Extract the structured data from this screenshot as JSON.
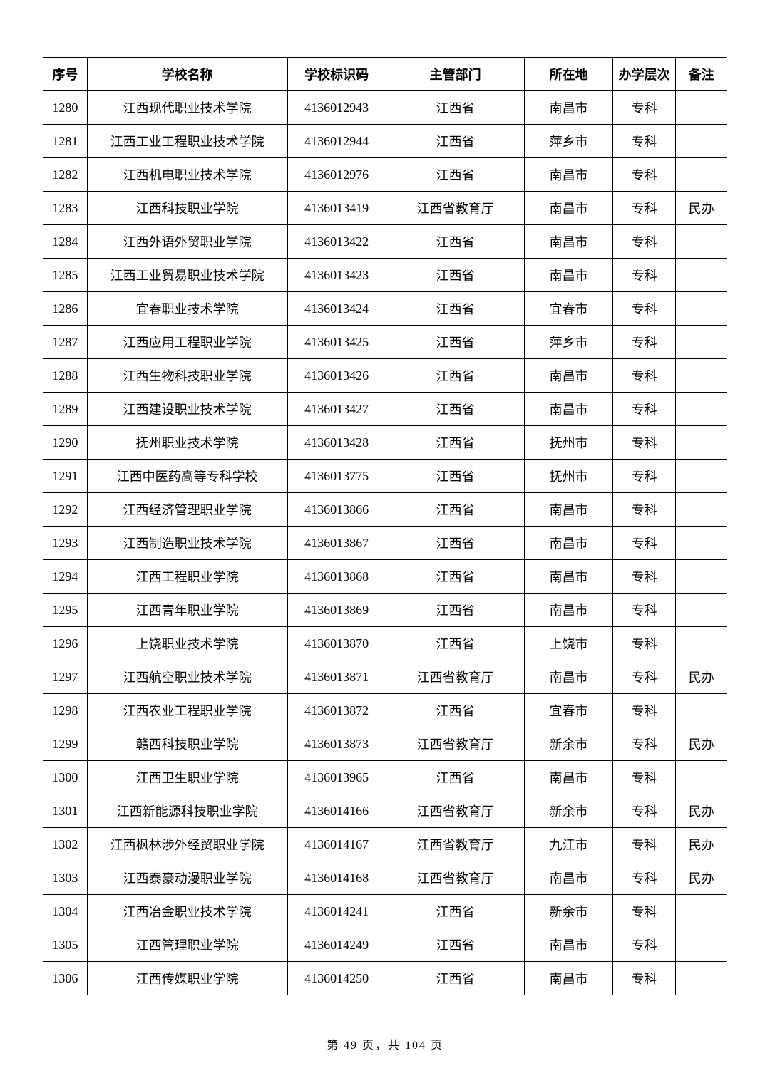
{
  "table": {
    "columns": [
      "序号",
      "学校名称",
      "学校标识码",
      "主管部门",
      "所在地",
      "办学层次",
      "备注"
    ],
    "rows": [
      [
        "1280",
        "江西现代职业技术学院",
        "4136012943",
        "江西省",
        "南昌市",
        "专科",
        ""
      ],
      [
        "1281",
        "江西工业工程职业技术学院",
        "4136012944",
        "江西省",
        "萍乡市",
        "专科",
        ""
      ],
      [
        "1282",
        "江西机电职业技术学院",
        "4136012976",
        "江西省",
        "南昌市",
        "专科",
        ""
      ],
      [
        "1283",
        "江西科技职业学院",
        "4136013419",
        "江西省教育厅",
        "南昌市",
        "专科",
        "民办"
      ],
      [
        "1284",
        "江西外语外贸职业学院",
        "4136013422",
        "江西省",
        "南昌市",
        "专科",
        ""
      ],
      [
        "1285",
        "江西工业贸易职业技术学院",
        "4136013423",
        "江西省",
        "南昌市",
        "专科",
        ""
      ],
      [
        "1286",
        "宜春职业技术学院",
        "4136013424",
        "江西省",
        "宜春市",
        "专科",
        ""
      ],
      [
        "1287",
        "江西应用工程职业学院",
        "4136013425",
        "江西省",
        "萍乡市",
        "专科",
        ""
      ],
      [
        "1288",
        "江西生物科技职业学院",
        "4136013426",
        "江西省",
        "南昌市",
        "专科",
        ""
      ],
      [
        "1289",
        "江西建设职业技术学院",
        "4136013427",
        "江西省",
        "南昌市",
        "专科",
        ""
      ],
      [
        "1290",
        "抚州职业技术学院",
        "4136013428",
        "江西省",
        "抚州市",
        "专科",
        ""
      ],
      [
        "1291",
        "江西中医药高等专科学校",
        "4136013775",
        "江西省",
        "抚州市",
        "专科",
        ""
      ],
      [
        "1292",
        "江西经济管理职业学院",
        "4136013866",
        "江西省",
        "南昌市",
        "专科",
        ""
      ],
      [
        "1293",
        "江西制造职业技术学院",
        "4136013867",
        "江西省",
        "南昌市",
        "专科",
        ""
      ],
      [
        "1294",
        "江西工程职业学院",
        "4136013868",
        "江西省",
        "南昌市",
        "专科",
        ""
      ],
      [
        "1295",
        "江西青年职业学院",
        "4136013869",
        "江西省",
        "南昌市",
        "专科",
        ""
      ],
      [
        "1296",
        "上饶职业技术学院",
        "4136013870",
        "江西省",
        "上饶市",
        "专科",
        ""
      ],
      [
        "1297",
        "江西航空职业技术学院",
        "4136013871",
        "江西省教育厅",
        "南昌市",
        "专科",
        "民办"
      ],
      [
        "1298",
        "江西农业工程职业学院",
        "4136013872",
        "江西省",
        "宜春市",
        "专科",
        ""
      ],
      [
        "1299",
        "赣西科技职业学院",
        "4136013873",
        "江西省教育厅",
        "新余市",
        "专科",
        "民办"
      ],
      [
        "1300",
        "江西卫生职业学院",
        "4136013965",
        "江西省",
        "南昌市",
        "专科",
        ""
      ],
      [
        "1301",
        "江西新能源科技职业学院",
        "4136014166",
        "江西省教育厅",
        "新余市",
        "专科",
        "民办"
      ],
      [
        "1302",
        "江西枫林涉外经贸职业学院",
        "4136014167",
        "江西省教育厅",
        "九江市",
        "专科",
        "民办"
      ],
      [
        "1303",
        "江西泰豪动漫职业学院",
        "4136014168",
        "江西省教育厅",
        "南昌市",
        "专科",
        "民办"
      ],
      [
        "1304",
        "江西冶金职业技术学院",
        "4136014241",
        "江西省",
        "新余市",
        "专科",
        ""
      ],
      [
        "1305",
        "江西管理职业学院",
        "4136014249",
        "江西省",
        "南昌市",
        "专科",
        ""
      ],
      [
        "1306",
        "江西传媒职业学院",
        "4136014250",
        "江西省",
        "南昌市",
        "专科",
        ""
      ]
    ]
  },
  "footer": "第 49 页，共 104 页"
}
